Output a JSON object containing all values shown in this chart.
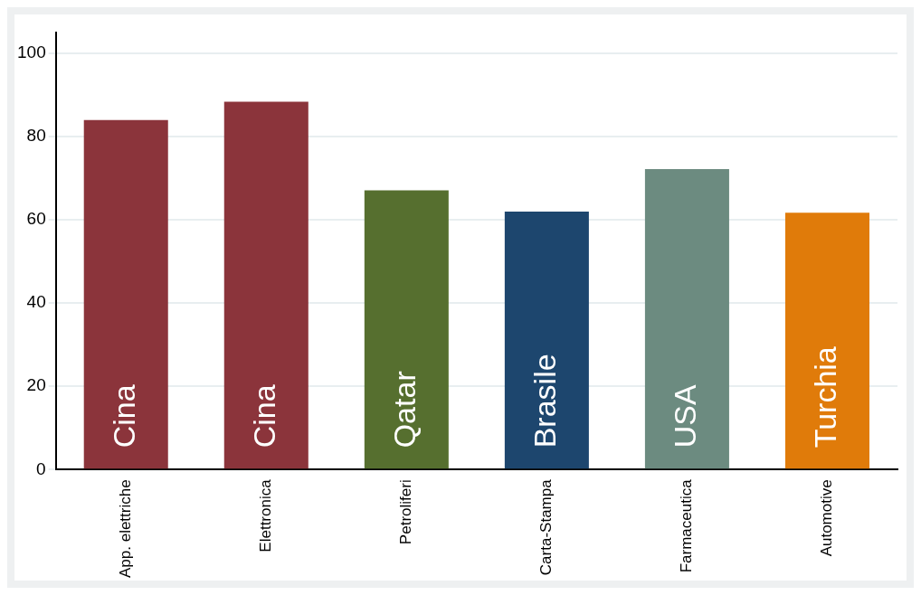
{
  "chart_data": {
    "type": "bar",
    "categories": [
      "App. elettriche",
      "Elettronica",
      "Petroliferi",
      "Carta-Stampa",
      "Farmaceutica",
      "Automotive"
    ],
    "values": [
      84,
      88.4,
      67.1,
      62,
      72.2,
      61.7
    ],
    "colors": [
      "#8b343b",
      "#8b343b",
      "#566f2f",
      "#1d466e",
      "#6c8b80",
      "#e07b0a"
    ],
    "ylim": [
      0,
      105
    ],
    "yticks": [
      0,
      20,
      40,
      60,
      80,
      100
    ],
    "grid": "y",
    "legend": false,
    "annotations": [
      {
        "text": "Cina",
        "x": "App. elettriche",
        "y": 0
      },
      {
        "text": "Cina",
        "x": "Elettronica",
        "y": 0
      },
      {
        "text": "Qatar",
        "x": "Petroliferi",
        "y": 0
      },
      {
        "text": "Brasile",
        "x": "Carta-Stampa",
        "y": 0
      },
      {
        "text": "USA",
        "x": "Farmaceutica",
        "y": 0
      },
      {
        "text": "Turchia",
        "x": "Automotive",
        "y": 0
      }
    ]
  }
}
